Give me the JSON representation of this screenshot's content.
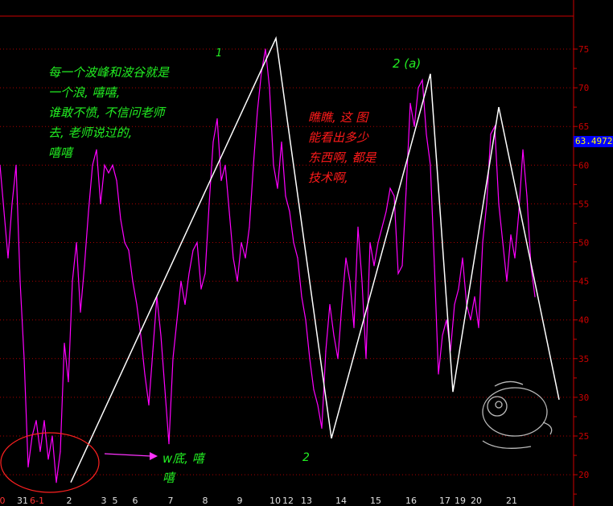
{
  "chart_data": {
    "type": "line",
    "title": "",
    "xlabel": "",
    "ylabel": "",
    "ylim": [
      17.5,
      79
    ],
    "grid": true,
    "y_ticks": [
      20,
      25,
      30,
      35,
      40,
      45,
      50,
      55,
      60,
      65,
      70,
      75
    ],
    "x_tick_labels": [
      "0",
      "31",
      "6-1",
      "2",
      "3",
      "5",
      "6",
      "7",
      "8",
      "9",
      "10",
      "12",
      "13",
      "14",
      "15",
      "16",
      "17",
      "19",
      "20",
      "21"
    ],
    "series": [
      {
        "color": "#ff00ff",
        "values": [
          60,
          54,
          48,
          55,
          60,
          45,
          35,
          21,
          25,
          27,
          23,
          27,
          22,
          25,
          19,
          23,
          37,
          32,
          45,
          50,
          41,
          47,
          54,
          60,
          62,
          55,
          60,
          59,
          60,
          58,
          53,
          50,
          49,
          45,
          42,
          38,
          33,
          29,
          36,
          43,
          38,
          31,
          24,
          35,
          40,
          45,
          42,
          46,
          49,
          50,
          44,
          46,
          55,
          63,
          66,
          58,
          60,
          54,
          48,
          45,
          50,
          48,
          52,
          60,
          67,
          72,
          75,
          70,
          60,
          57,
          63,
          56,
          54,
          50,
          48,
          43,
          40,
          35,
          31,
          29,
          26,
          36,
          42,
          38,
          35,
          42,
          48,
          45,
          39,
          52,
          45,
          35,
          50,
          47,
          50,
          52,
          54,
          57,
          56,
          46,
          47,
          57,
          68,
          65,
          70,
          71,
          64,
          60,
          47,
          33,
          38,
          40,
          36,
          42,
          44,
          48,
          42,
          40,
          43,
          39,
          50,
          55,
          64,
          65,
          55,
          50,
          45,
          51,
          48,
          54,
          62,
          56,
          47,
          43
        ]
      }
    ],
    "wave_line": {
      "color": "#ffffff",
      "points": [
        [
          17.6,
          19
        ],
        [
          68.6,
          76.4
        ],
        [
          82.4,
          24.7
        ],
        [
          107,
          71.8
        ],
        [
          112.6,
          30.7
        ],
        [
          124,
          67.5
        ],
        [
          139,
          29.7
        ]
      ]
    },
    "current_value": "63.4972",
    "wave_labels": [
      "1",
      "2 (a)",
      "2"
    ],
    "annotations": {
      "green_note": [
        "每一个波峰和波谷就是",
        "一个浪, 嘻嘻,",
        "谁敢不愤, 不信问老师",
        "去, 老师说过的,",
        "嘻嘻"
      ],
      "red_note": [
        "瞧瞧, 这 图",
        "能看出多少",
        "东西啊, 都是",
        "技术啊,"
      ],
      "w_bottom_note": [
        "w底, 嘻",
        "嘻"
      ]
    },
    "colors": {
      "axis": "#cc0000",
      "grid": "#aa0000",
      "price": "#ff00ff",
      "wave": "#ffffff",
      "green_text": "#22ee22",
      "red_text": "#ff1a1a",
      "tag_bg": "#0000ff",
      "tag_fg": "#ffff00"
    }
  }
}
